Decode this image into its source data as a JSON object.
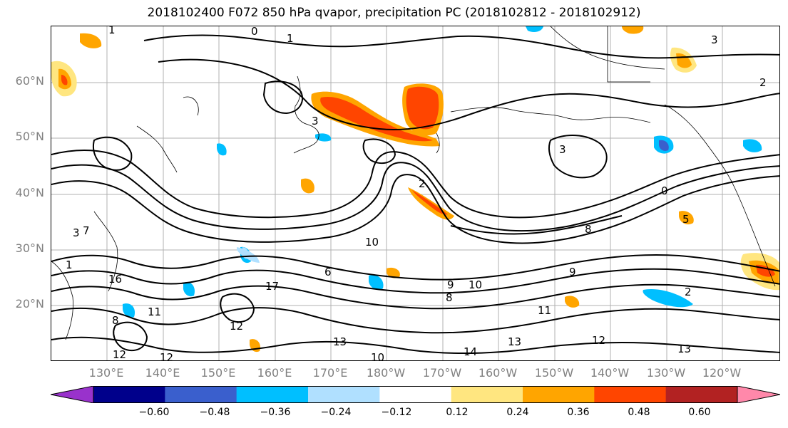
{
  "title": "2018102400 F072 850 hPa qvapor, precipitation PC (2018102812 - 2018102912)",
  "lat_labels": [
    "60°N",
    "50°N",
    "40°N",
    "30°N",
    "20°N"
  ],
  "lon_labels": [
    "130°E",
    "140°E",
    "150°E",
    "160°E",
    "170°E",
    "180°W",
    "170°W",
    "160°W",
    "150°W",
    "140°W",
    "130°W",
    "120°W"
  ],
  "contour_labels": [
    "1",
    "0",
    "1",
    "3",
    "3",
    "2",
    "3",
    "3",
    "2",
    "1",
    "7",
    "10",
    "8",
    "6",
    "17",
    "9",
    "12",
    "16",
    "13",
    "12",
    "14",
    "13",
    "12",
    "11",
    "10",
    "9",
    "8",
    "10",
    "12",
    "11",
    "13",
    "2",
    "5",
    "0",
    "8"
  ],
  "colorbar": {
    "ticks": [
      "−0.60",
      "−0.48",
      "−0.36",
      "−0.24",
      "−0.12",
      "0.12",
      "0.24",
      "0.36",
      "0.48",
      "0.60"
    ],
    "colors": [
      "#9932cc",
      "#00008b",
      "#3a5fcd",
      "#00bfff",
      "#b0e0ff",
      "#ffffff",
      "#ffe680",
      "#ffa500",
      "#ff4500",
      "#b22222",
      "#ff88aa"
    ]
  }
}
